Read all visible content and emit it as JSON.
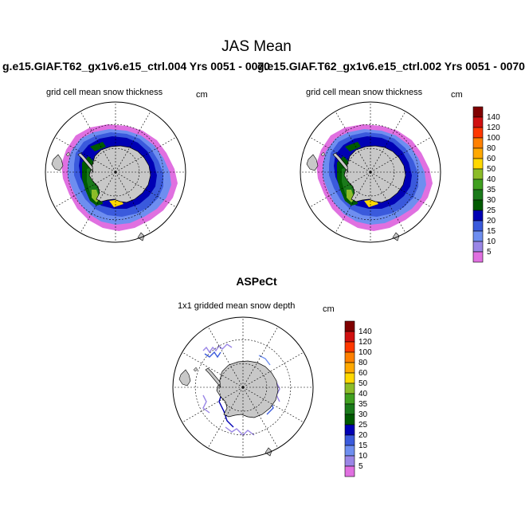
{
  "chart_data": {
    "type": "heatmap",
    "title": "JAS Mean",
    "panels": [
      {
        "case": "g.e15.GIAF.T62_gx1v6.e15_ctrl.004  Yrs 0051 - 0070",
        "title": "grid cell mean snow thickness",
        "units": "cm",
        "projection": "south polar stereographic"
      },
      {
        "case": "g.e15.GIAF.T62_gx1v6.e15_ctrl.002  Yrs 0051 - 0070",
        "title": "grid cell mean snow thickness",
        "units": "cm",
        "projection": "south polar stereographic"
      },
      {
        "case": "ASPeCt",
        "title": "1x1 gridded mean snow depth",
        "units": "cm",
        "projection": "south polar stereographic"
      }
    ],
    "colorbar": {
      "levels": [
        "140",
        "120",
        "100",
        "80",
        "60",
        "50",
        "40",
        "35",
        "30",
        "25",
        "20",
        "15",
        "10",
        "5"
      ],
      "colors": [
        "#800000",
        "#d01010",
        "#ff3800",
        "#ff8000",
        "#ffa800",
        "#ffd800",
        "#8cbc28",
        "#40a020",
        "#1a7a1a",
        "#005a00",
        "#0000b4",
        "#3a5adc",
        "#6e8ef0",
        "#9a86e6",
        "#e070e0"
      ]
    }
  }
}
